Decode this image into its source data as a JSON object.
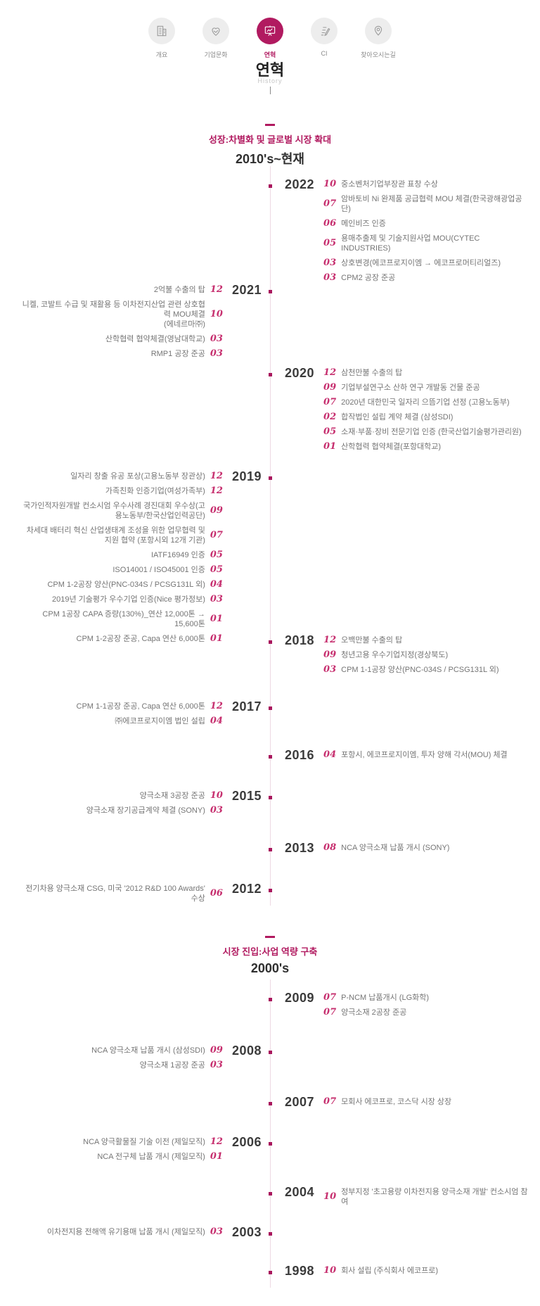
{
  "accent_color": "#b11a60",
  "nav": {
    "items": [
      {
        "label": "개요",
        "icon": "building-icon",
        "active": false
      },
      {
        "label": "기업문화",
        "icon": "heart-hands-icon",
        "active": false
      },
      {
        "label": "연혁",
        "icon": "presentation-chart-icon",
        "active": true
      },
      {
        "label": "CI",
        "icon": "pencil-document-icon",
        "active": false
      },
      {
        "label": "찾아오시는길",
        "icon": "location-pin-icon",
        "active": false
      }
    ]
  },
  "page": {
    "title": "연혁",
    "subtitle": "History"
  },
  "timeline": {
    "sections": [
      {
        "title": "성장:차별화 및 글로벌 시장 확대",
        "period": "2010's~현재",
        "years": [
          {
            "year": "2022",
            "entries": [
              {
                "month": "10",
                "text": "중소벤처기업부장관 표창 수상"
              },
              {
                "month": "07",
                "text": "암바토비 Ni 완제품 공급협력 MOU 체결(한국광해광업공단)"
              },
              {
                "month": "06",
                "text": "메인비즈 인증"
              },
              {
                "month": "05",
                "text": "용매추출제 및 기술지원사업 MOU(CYTEC INDUSTRIES)"
              },
              {
                "month": "03",
                "text": "상호변경(에코프로지이엠 → 에코프로머티리얼즈)"
              },
              {
                "month": "03",
                "text": "CPM2 공장 준공"
              }
            ]
          },
          {
            "year": "2021",
            "entries": [
              {
                "month": "12",
                "text": "2억불 수출의 탑"
              },
              {
                "month": "10",
                "text": "니켈, 코발트 수급 및 재활용 등 이차전지산업 관련 상호협력 MOU체결\n(에네르마㈜)"
              },
              {
                "month": "03",
                "text": "산학협력 협약체결(영남대학교)"
              },
              {
                "month": "03",
                "text": "RMP1 공장 준공"
              }
            ]
          },
          {
            "year": "2020",
            "entries": [
              {
                "month": "12",
                "text": "삼천만불 수출의 탑"
              },
              {
                "month": "09",
                "text": "기업부설연구소 산하 연구 개발동 건물 준공"
              },
              {
                "month": "07",
                "text": "2020년 대한민국 일자리 으뜸기업 선정 (고용노동부)"
              },
              {
                "month": "02",
                "text": "합작법인 설립 계약 체결 (삼성SDI)"
              },
              {
                "month": "05",
                "text": "소재·부품·장비 전문기업 인증 (한국산업기술평가관리원)"
              },
              {
                "month": "01",
                "text": "산학협력 협약체결(포항대학교)"
              }
            ]
          },
          {
            "year": "2019",
            "entries": [
              {
                "month": "12",
                "text": "일자리 창출 유공 포상(고용노동부 장관상)"
              },
              {
                "month": "12",
                "text": "가족친화 인증기업(여성가족부)"
              },
              {
                "month": "09",
                "text": "국가인적자원개발 컨소시엄 우수사례 경진대회 우수상(고용노동부/한국산업인력공단)"
              },
              {
                "month": "07",
                "text": "차세대 배터리 혁신 산업생태계 조성을 위한 업무협력 및 지원 협약 (포항시외 12개 기관)"
              },
              {
                "month": "05",
                "text": "IATF16949 인증"
              },
              {
                "month": "05",
                "text": "ISO14001 / ISO45001 인증"
              },
              {
                "month": "04",
                "text": "CPM 1-2공장 양산(PNC-034S / PCSG131L 외)"
              },
              {
                "month": "03",
                "text": "2019년 기술평가 우수기업 인증(Nice 평가정보)"
              },
              {
                "month": "01",
                "text": "CPM 1공장 CAPA 증량(130%)_연산 12,000톤 → 15,600톤"
              },
              {
                "month": "01",
                "text": "CPM 1-2공장 준공, Capa 연산 6,000톤"
              }
            ]
          },
          {
            "year": "2018",
            "entries": [
              {
                "month": "12",
                "text": "오백만불 수출의 탑"
              },
              {
                "month": "09",
                "text": "청년고용 우수기업지정(경상북도)"
              },
              {
                "month": "03",
                "text": "CPM 1-1공장 양산(PNC-034S / PCSG131L 외)"
              }
            ]
          },
          {
            "year": "2017",
            "entries": [
              {
                "month": "12",
                "text": "CPM 1-1공장 준공, Capa 연산 6,000톤"
              },
              {
                "month": "04",
                "text": "㈜에코프로지이엠 법인 설립"
              }
            ]
          },
          {
            "year": "2016",
            "entries": [
              {
                "month": "04",
                "text": "포항시, 에코프로지이엠, 투자 양해 각서(MOU) 체결"
              }
            ]
          },
          {
            "year": "2015",
            "entries": [
              {
                "month": "10",
                "text": "양극소재 3공장 준공"
              },
              {
                "month": "03",
                "text": "양극소재 장기공급계약 체결 (SONY)"
              }
            ]
          },
          {
            "year": "2013",
            "entries": [
              {
                "month": "08",
                "text": "NCA 양극소재 납품 개시 (SONY)"
              }
            ]
          },
          {
            "year": "2012",
            "entries": [
              {
                "month": "06",
                "text": "전기차용 양극소재 CSG, 미국 '2012 R&D 100 Awards' 수상"
              }
            ]
          }
        ]
      },
      {
        "title": "시장 진입:사업 역량 구축",
        "period": "2000's",
        "years": [
          {
            "year": "2009",
            "entries": [
              {
                "month": "07",
                "text": "P-NCM 납품개시 (LG화학)"
              },
              {
                "month": "07",
                "text": "양극소재 2공장 준공"
              }
            ]
          },
          {
            "year": "2008",
            "entries": [
              {
                "month": "09",
                "text": "NCA 양극소재 납품 개시 (삼성SDI)"
              },
              {
                "month": "03",
                "text": "양극소재 1공장 준공"
              }
            ]
          },
          {
            "year": "2007",
            "entries": [
              {
                "month": "07",
                "text": "모회사 에코프로, 코스닥 시장 상장"
              }
            ]
          },
          {
            "year": "2006",
            "entries": [
              {
                "month": "12",
                "text": "NCA 양극활물질 기술 이전 (제일모직)"
              },
              {
                "month": "01",
                "text": "NCA 전구체 납품 개시 (제일모직)"
              }
            ]
          },
          {
            "year": "2004",
            "entries": [
              {
                "month": "10",
                "text": "정부지정 '초고용량 이차전지용 양극소재 개발' 컨소시엄 참여"
              }
            ]
          },
          {
            "year": "2003",
            "entries": [
              {
                "month": "03",
                "text": "이차전지용 전해액 유기용매 납품 개시 (제일모직)"
              }
            ]
          },
          {
            "year": "1998",
            "entries": [
              {
                "month": "10",
                "text": "회사 설립 (주식회사 에코프로)"
              }
            ]
          }
        ]
      }
    ]
  }
}
